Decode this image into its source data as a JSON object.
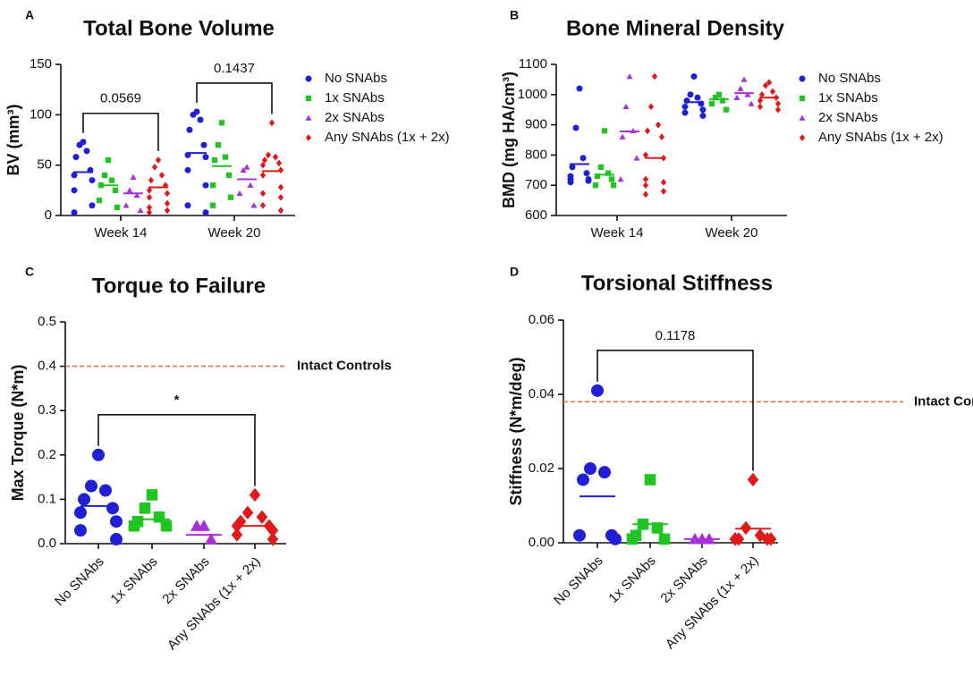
{
  "chart_data": [
    {
      "type": "scatter",
      "panel": "A",
      "title": "Total Bone Volume",
      "ylabel": "BV (mm³)",
      "categories": [
        "Week 14",
        "Week 20"
      ],
      "ylim": [
        0,
        150
      ],
      "yticks": [
        0,
        50,
        100,
        150
      ],
      "series": [
        {
          "name": "No SNAbs",
          "color": "#1f1fd6",
          "marker": "circle",
          "values": [
            [
              73,
              70,
              64,
              58,
              45,
              40,
              35,
              25,
              10,
              3
            ],
            [
              103,
              100,
              95,
              85,
              70,
              60,
              58,
              45,
              30,
              10,
              3
            ]
          ],
          "means": [
            43,
            62
          ]
        },
        {
          "name": "1x SNAbs",
          "color": "#22c422",
          "marker": "square",
          "values": [
            [
              55,
              40,
              35,
              30,
              25,
              15,
              8
            ],
            [
              92,
              70,
              58,
              55,
              40,
              30,
              18,
              10
            ]
          ],
          "means": [
            30,
            49
          ]
        },
        {
          "name": "2x SNAbs",
          "color": "#a830d8",
          "marker": "triangle",
          "values": [
            [
              38,
              25,
              20,
              10,
              5
            ],
            [
              48,
              45,
              30,
              22,
              10
            ]
          ],
          "means": [
            22,
            36
          ]
        },
        {
          "name": "Any SNAbs (1x + 2x)",
          "color": "#e01a1a",
          "marker": "diamond",
          "values": [
            [
              55,
              48,
              40,
              35,
              30,
              25,
              22,
              18,
              12,
              8,
              5,
              3
            ],
            [
              92,
              60,
              58,
              55,
              52,
              50,
              45,
              40,
              28,
              22,
              18,
              10,
              5
            ]
          ],
          "means": [
            28,
            44
          ]
        }
      ],
      "brackets": [
        {
          "label": "0.0569",
          "group": 0,
          "from": 0,
          "to": 3
        },
        {
          "label": "0.1437",
          "group": 1,
          "from": 0,
          "to": 3
        }
      ]
    },
    {
      "type": "scatter",
      "panel": "B",
      "title": "Bone Mineral Density",
      "ylabel": "BMD (mg HA/cm³)",
      "categories": [
        "Week 14",
        "Week 20"
      ],
      "ylim": [
        600,
        1100
      ],
      "yticks": [
        600,
        700,
        800,
        900,
        1000,
        1100
      ],
      "series": [
        {
          "name": "No SNAbs",
          "color": "#1f1fd6",
          "marker": "circle",
          "values": [
            [
              1020,
              890,
              790,
              760,
              740,
              720,
              715,
              710,
              720,
              730
            ],
            [
              1060,
              1000,
              990,
              980,
              970,
              960,
              950,
              940,
              930
            ]
          ],
          "means": [
            770,
            975
          ]
        },
        {
          "name": "1x SNAbs",
          "color": "#22c422",
          "marker": "square",
          "values": [
            [
              880,
              760,
              740,
              730,
              720,
              700,
              700
            ],
            [
              1000,
              990,
              980,
              970,
              950
            ]
          ],
          "means": [
            735,
            985
          ]
        },
        {
          "name": "2x SNAbs",
          "color": "#a830d8",
          "marker": "triangle",
          "values": [
            [
              1060,
              960,
              880,
              860,
              790,
              720
            ],
            [
              1050,
              1020,
              1000,
              990,
              970
            ]
          ],
          "means": [
            878,
            1005
          ]
        },
        {
          "name": "Any SNAbs (1x + 2x)",
          "color": "#e01a1a",
          "marker": "diamond",
          "values": [
            [
              1060,
              960,
              900,
              880,
              860,
              800,
              790,
              720,
              710,
              700,
              680,
              670
            ],
            [
              1040,
              1030,
              1010,
              1000,
              990,
              980,
              970,
              960,
              950
            ]
          ],
          "means": [
            790,
            990
          ]
        }
      ]
    },
    {
      "type": "scatter",
      "panel": "C",
      "title": "Torque to Failure",
      "ylabel": "Max Torque (N*m)",
      "categories": [
        "No SNAbs",
        "1x SNAbs",
        "2x SNAbs",
        "Any SNAbs (1x + 2x)"
      ],
      "colors": [
        "#1f1fd6",
        "#22c422",
        "#a830d8",
        "#e01a1a"
      ],
      "markers": [
        "circle",
        "square",
        "triangle",
        "diamond"
      ],
      "values": [
        [
          0.2,
          0.13,
          0.12,
          0.1,
          0.08,
          0.07,
          0.05,
          0.03,
          0.01
        ],
        [
          0.11,
          0.08,
          0.06,
          0.05,
          0.04,
          0.04
        ],
        [
          0.04,
          0.04,
          0.01
        ],
        [
          0.11,
          0.07,
          0.06,
          0.05,
          0.04,
          0.04,
          0.03,
          0.02,
          0.01
        ]
      ],
      "means": [
        0.085,
        0.055,
        0.02,
        0.04
      ],
      "ylim": [
        0,
        0.5
      ],
      "yticks": [
        {
          "value": 0,
          "label": "0.0"
        },
        0.1,
        0.2,
        0.3,
        0.4,
        0.5
      ],
      "reference": {
        "value": 0.4,
        "label": "Intact Controls",
        "color": "#e8733a"
      },
      "brackets": [
        {
          "label": "*",
          "from": 0,
          "to": 3
        }
      ]
    },
    {
      "type": "scatter",
      "panel": "D",
      "title": "Torsional Stiffness",
      "ylabel": "Stiffness (N*m/deg)",
      "categories": [
        "No SNAbs",
        "1x SNAbs",
        "2x SNAbs",
        "Any SNAbs (1x + 2x)"
      ],
      "colors": [
        "#1f1fd6",
        "#22c422",
        "#a830d8",
        "#e01a1a"
      ],
      "markers": [
        "circle",
        "square",
        "triangle",
        "diamond"
      ],
      "values": [
        [
          0.041,
          0.02,
          0.019,
          0.017,
          0.002,
          0.002,
          0.001
        ],
        [
          0.017,
          0.005,
          0.004,
          0.002,
          0.001,
          0.001
        ],
        [
          0.001,
          0.001,
          0.001
        ],
        [
          0.017,
          0.004,
          0.002,
          0.001,
          0.001,
          0.001,
          0.001,
          0.001
        ]
      ],
      "means": [
        0.0125,
        0.005,
        0.001,
        0.0038
      ],
      "ylim": [
        0,
        0.06
      ],
      "yticks": [
        {
          "value": 0,
          "label": "0.00"
        },
        {
          "value": 0.02,
          "label": "0.02"
        },
        {
          "value": 0.04,
          "label": "0.04"
        },
        {
          "value": 0.06,
          "label": "0.06"
        }
      ],
      "reference": {
        "value": 0.038,
        "label": "Intact Controls",
        "color": "#e8733a"
      },
      "brackets": [
        {
          "label": "0.1178",
          "from": 0,
          "to": 3
        }
      ]
    }
  ]
}
